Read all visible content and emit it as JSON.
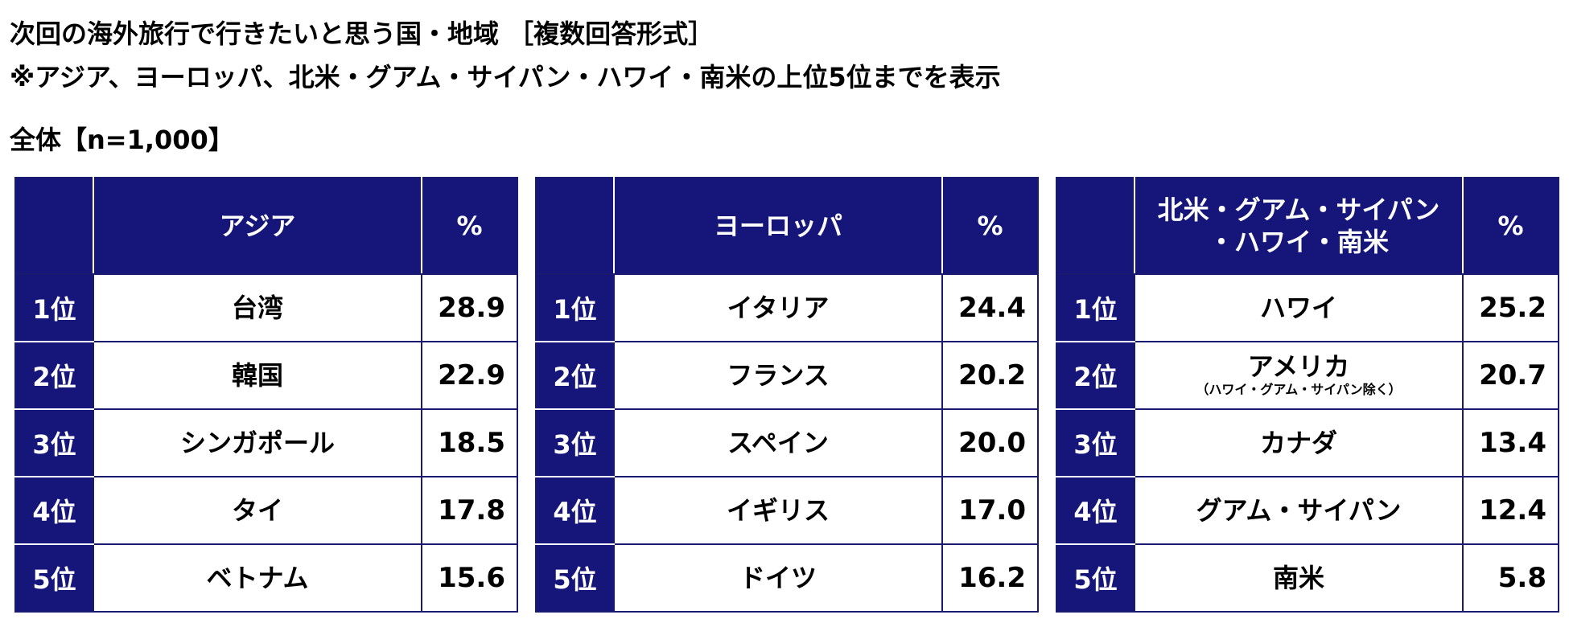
{
  "header": {
    "title_line1": "次回の海外旅行で行きたいと思う国・地域 ［複数回答形式］",
    "title_line2": "※アジア、ヨーロッパ、北米・グアム・サイパン・ハワイ・南米の上位5位までを表示",
    "subset": "全体【n=1,000】"
  },
  "colors": {
    "header_bg": "#16167a",
    "border": "#1a1a6e"
  },
  "chart_data": {
    "type": "table",
    "value_header": "%",
    "tables": [
      {
        "name": "アジア",
        "rows": [
          {
            "rank": "1位",
            "name": "台湾",
            "note": "",
            "value": "28.9"
          },
          {
            "rank": "2位",
            "name": "韓国",
            "note": "",
            "value": "22.9"
          },
          {
            "rank": "3位",
            "name": "シンガポール",
            "note": "",
            "value": "18.5"
          },
          {
            "rank": "4位",
            "name": "タイ",
            "note": "",
            "value": "17.8"
          },
          {
            "rank": "5位",
            "name": "ベトナム",
            "note": "",
            "value": "15.6"
          }
        ]
      },
      {
        "name": "ヨーロッパ",
        "rows": [
          {
            "rank": "1位",
            "name": "イタリア",
            "note": "",
            "value": "24.4"
          },
          {
            "rank": "2位",
            "name": "フランス",
            "note": "",
            "value": "20.2"
          },
          {
            "rank": "3位",
            "name": "スペイン",
            "note": "",
            "value": "20.0"
          },
          {
            "rank": "4位",
            "name": "イギリス",
            "note": "",
            "value": "17.0"
          },
          {
            "rank": "5位",
            "name": "ドイツ",
            "note": "",
            "value": "16.2"
          }
        ]
      },
      {
        "name": "北米・グアム・サイパン・ハワイ・南米",
        "name_line1": "北米・グアム・サイパン",
        "name_line2": "・ハワイ・南米",
        "rows": [
          {
            "rank": "1位",
            "name": "ハワイ",
            "note": "",
            "value": "25.2"
          },
          {
            "rank": "2位",
            "name": "アメリカ",
            "note": "（ハワイ・グアム・サイパン除く）",
            "value": "20.7"
          },
          {
            "rank": "3位",
            "name": "カナダ",
            "note": "",
            "value": "13.4"
          },
          {
            "rank": "4位",
            "name": "グアム・サイパン",
            "note": "",
            "value": "12.4"
          },
          {
            "rank": "5位",
            "name": "南米",
            "note": "",
            "value": "5.8"
          }
        ]
      }
    ]
  }
}
